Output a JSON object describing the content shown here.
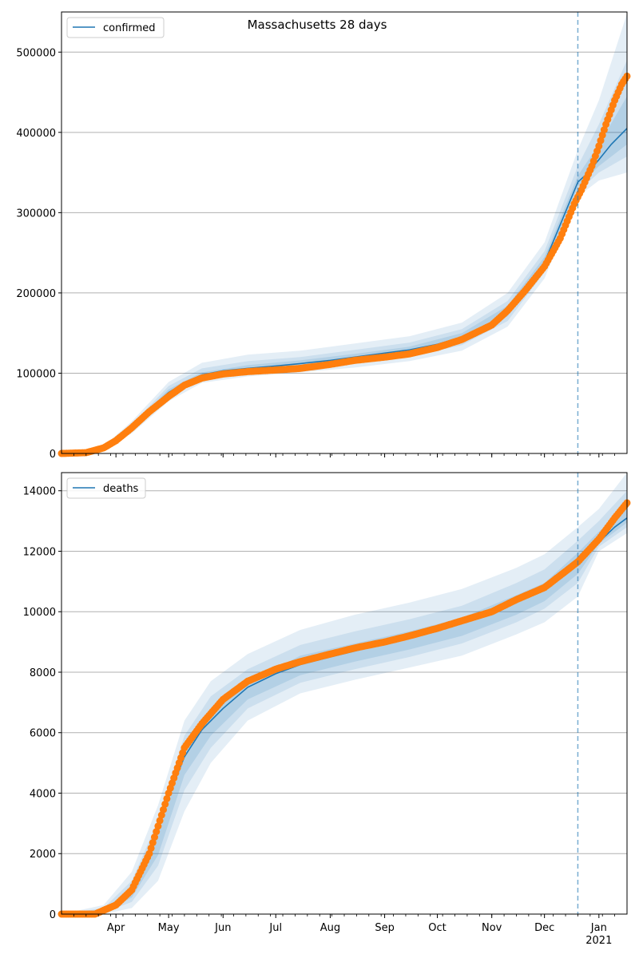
{
  "figure": {
    "title": "Massachusetts 28 days"
  },
  "colors": {
    "model": "#1f77b4",
    "observed": "#ff7f0e",
    "band": "#1f77b4",
    "grid": "#b0b0b0",
    "vline": "#1f77b4"
  },
  "chart_data": [
    {
      "type": "line",
      "title": "Massachusetts 28 days",
      "xlabel": "",
      "ylabel": "",
      "x_axis": "date",
      "xlim": [
        "2020-03-01",
        "2021-01-17"
      ],
      "ylim": [
        0,
        550000
      ],
      "yticks": [
        0,
        100000,
        200000,
        300000,
        400000,
        500000
      ],
      "ytick_labels": [
        "0",
        "100000",
        "200000",
        "300000",
        "400000",
        "500000"
      ],
      "xtick_labels": [],
      "grid": "y",
      "legend": {
        "position": "top-left",
        "entries": [
          "confirmed"
        ]
      },
      "forecast_start": "2020-12-20",
      "series": [
        {
          "name": "confirmed",
          "kind": "model-line",
          "x": [
            "2020-03-01",
            "2020-03-15",
            "2020-03-25",
            "2020-04-01",
            "2020-04-10",
            "2020-04-20",
            "2020-05-01",
            "2020-05-10",
            "2020-05-20",
            "2020-06-01",
            "2020-06-15",
            "2020-07-01",
            "2020-07-15",
            "2020-08-01",
            "2020-08-15",
            "2020-09-01",
            "2020-09-15",
            "2020-10-01",
            "2020-10-15",
            "2020-11-01",
            "2020-11-10",
            "2020-11-20",
            "2020-12-01",
            "2020-12-10",
            "2020-12-20",
            "2020-12-25",
            "2021-01-01",
            "2021-01-08",
            "2021-01-17"
          ],
          "y": [
            0,
            1000,
            7000,
            16000,
            32000,
            55000,
            76000,
            88000,
            98000,
            103000,
            106000,
            109000,
            112000,
            116000,
            120000,
            125000,
            129000,
            136000,
            145000,
            162000,
            177000,
            200000,
            238000,
            285000,
            338000,
            348000,
            366000,
            385000,
            405000
          ]
        },
        {
          "kind": "observed",
          "x": [
            "2020-03-01",
            "2020-03-15",
            "2020-03-25",
            "2020-04-01",
            "2020-04-10",
            "2020-04-20",
            "2020-05-01",
            "2020-05-10",
            "2020-05-20",
            "2020-06-01",
            "2020-06-15",
            "2020-07-01",
            "2020-07-15",
            "2020-08-01",
            "2020-08-15",
            "2020-09-01",
            "2020-09-15",
            "2020-10-01",
            "2020-10-15",
            "2020-11-01",
            "2020-11-10",
            "2020-11-20",
            "2020-12-01",
            "2020-12-10",
            "2020-12-18",
            "2020-12-22",
            "2020-12-28",
            "2021-01-01",
            "2021-01-05",
            "2021-01-10",
            "2021-01-14",
            "2021-01-17"
          ],
          "y": [
            0,
            1000,
            7000,
            16000,
            32000,
            52000,
            71000,
            85000,
            94000,
            99000,
            102000,
            104000,
            106000,
            111000,
            116000,
            120000,
            124000,
            132000,
            142000,
            160000,
            178000,
            203000,
            233000,
            268000,
            311000,
            328000,
            358000,
            383000,
            410000,
            440000,
            460000,
            470000
          ]
        },
        {
          "kind": "band-outer",
          "x": [
            "2020-03-01",
            "2020-03-25",
            "2020-04-10",
            "2020-05-01",
            "2020-05-20",
            "2020-06-15",
            "2020-07-15",
            "2020-08-15",
            "2020-09-15",
            "2020-10-15",
            "2020-11-10",
            "2020-12-01",
            "2020-12-20",
            "2021-01-01",
            "2021-01-17"
          ],
          "lower": [
            0,
            5000,
            25000,
            65000,
            88000,
            96000,
            101000,
            107000,
            115000,
            128000,
            158000,
            218000,
            320000,
            340000,
            350000
          ],
          "upper": [
            0,
            9000,
            40000,
            89000,
            113000,
            123000,
            128000,
            137000,
            146000,
            163000,
            200000,
            263000,
            378000,
            440000,
            548000
          ]
        },
        {
          "kind": "band-middle",
          "x": [
            "2020-03-01",
            "2020-03-25",
            "2020-04-10",
            "2020-05-01",
            "2020-05-20",
            "2020-06-15",
            "2020-07-15",
            "2020-08-15",
            "2020-09-15",
            "2020-10-15",
            "2020-11-10",
            "2020-12-01",
            "2020-12-20",
            "2021-01-01",
            "2021-01-17"
          ],
          "lower": [
            0,
            6000,
            28000,
            70000,
            92000,
            100000,
            105000,
            112000,
            120000,
            135000,
            165000,
            226000,
            326000,
            350000,
            370000
          ],
          "upper": [
            0,
            8000,
            36000,
            84000,
            106000,
            115000,
            120000,
            129000,
            138000,
            155000,
            190000,
            252000,
            358000,
            410000,
            490000
          ]
        },
        {
          "kind": "band-inner",
          "x": [
            "2020-03-01",
            "2020-03-25",
            "2020-04-10",
            "2020-05-01",
            "2020-05-20",
            "2020-06-15",
            "2020-07-15",
            "2020-08-15",
            "2020-09-15",
            "2020-10-15",
            "2020-11-10",
            "2020-12-01",
            "2020-12-20",
            "2021-01-01",
            "2021-01-17"
          ],
          "lower": [
            0,
            6500,
            30000,
            73000,
            95000,
            103000,
            108000,
            116000,
            125000,
            140000,
            171000,
            232000,
            332000,
            358000,
            385000
          ],
          "upper": [
            0,
            7500,
            34000,
            80000,
            101000,
            110000,
            116000,
            124000,
            133000,
            150000,
            184000,
            245000,
            346000,
            385000,
            445000
          ]
        }
      ]
    },
    {
      "type": "line",
      "title": "",
      "xlabel": "",
      "ylabel": "",
      "x_axis": "date",
      "xlim": [
        "2020-03-01",
        "2021-01-17"
      ],
      "ylim": [
        0,
        14600
      ],
      "yticks": [
        0,
        2000,
        4000,
        6000,
        8000,
        10000,
        12000,
        14000
      ],
      "ytick_labels": [
        "0",
        "2000",
        "4000",
        "6000",
        "8000",
        "10000",
        "12000",
        "14000"
      ],
      "xtick_labels": [
        {
          "date": "2020-04-01",
          "label": "Apr"
        },
        {
          "date": "2020-05-01",
          "label": "May"
        },
        {
          "date": "2020-06-01",
          "label": "Jun"
        },
        {
          "date": "2020-07-01",
          "label": "Jul"
        },
        {
          "date": "2020-08-01",
          "label": "Aug"
        },
        {
          "date": "2020-09-01",
          "label": "Sep"
        },
        {
          "date": "2020-10-01",
          "label": "Oct"
        },
        {
          "date": "2020-11-01",
          "label": "Nov"
        },
        {
          "date": "2020-12-01",
          "label": "Dec"
        },
        {
          "date": "2021-01-01",
          "label": "Jan",
          "sublabel": "2021"
        }
      ],
      "grid": "y",
      "legend": {
        "position": "top-left",
        "entries": [
          "deaths"
        ]
      },
      "forecast_start": "2020-12-20",
      "series": [
        {
          "name": "deaths",
          "kind": "model-line",
          "x": [
            "2020-03-01",
            "2020-03-20",
            "2020-04-01",
            "2020-04-10",
            "2020-04-20",
            "2020-05-01",
            "2020-05-10",
            "2020-05-20",
            "2020-06-01",
            "2020-06-15",
            "2020-07-01",
            "2020-07-15",
            "2020-08-01",
            "2020-08-15",
            "2020-09-01",
            "2020-09-15",
            "2020-10-01",
            "2020-10-15",
            "2020-11-01",
            "2020-11-15",
            "2020-12-01",
            "2020-12-10",
            "2020-12-20",
            "2021-01-01",
            "2021-01-10",
            "2021-01-17"
          ],
          "y": [
            0,
            0,
            200,
            700,
            1900,
            3900,
            5200,
            6100,
            6800,
            7500,
            7950,
            8250,
            8500,
            8700,
            8950,
            9150,
            9400,
            9650,
            9950,
            10350,
            10750,
            11150,
            11650,
            12300,
            12800,
            13100
          ]
        },
        {
          "kind": "observed",
          "x": [
            "2020-03-01",
            "2020-03-20",
            "2020-04-01",
            "2020-04-10",
            "2020-04-20",
            "2020-05-01",
            "2020-05-10",
            "2020-05-20",
            "2020-06-01",
            "2020-06-15",
            "2020-07-01",
            "2020-07-15",
            "2020-08-01",
            "2020-08-15",
            "2020-09-01",
            "2020-09-15",
            "2020-10-01",
            "2020-10-15",
            "2020-11-01",
            "2020-11-15",
            "2020-12-01",
            "2020-12-10",
            "2020-12-20",
            "2021-01-01",
            "2021-01-10",
            "2021-01-17"
          ],
          "y": [
            0,
            0,
            300,
            800,
            2000,
            4000,
            5500,
            6300,
            7100,
            7700,
            8100,
            8350,
            8600,
            8800,
            9000,
            9200,
            9450,
            9700,
            10000,
            10400,
            10800,
            11200,
            11650,
            12400,
            13100,
            13600
          ]
        },
        {
          "kind": "band-outer",
          "x": [
            "2020-03-01",
            "2020-03-25",
            "2020-04-10",
            "2020-04-25",
            "2020-05-10",
            "2020-05-25",
            "2020-06-15",
            "2020-07-15",
            "2020-08-15",
            "2020-09-15",
            "2020-10-15",
            "2020-11-15",
            "2020-12-01",
            "2020-12-20",
            "2021-01-01",
            "2021-01-17"
          ],
          "lower": [
            0,
            0,
            200,
            1100,
            3400,
            5000,
            6400,
            7300,
            7750,
            8150,
            8550,
            9250,
            9650,
            10500,
            12000,
            12600
          ],
          "upper": [
            0,
            300,
            1400,
            3600,
            6400,
            7700,
            8600,
            9400,
            9900,
            10300,
            10750,
            11450,
            11900,
            12800,
            13400,
            14600
          ]
        },
        {
          "kind": "band-middle",
          "x": [
            "2020-03-01",
            "2020-03-25",
            "2020-04-10",
            "2020-04-25",
            "2020-05-10",
            "2020-05-25",
            "2020-06-15",
            "2020-07-15",
            "2020-08-15",
            "2020-09-15",
            "2020-10-15",
            "2020-11-15",
            "2020-12-01",
            "2020-12-20",
            "2021-01-01",
            "2021-01-17"
          ],
          "lower": [
            0,
            50,
            400,
            1600,
            4100,
            5500,
            6800,
            7650,
            8100,
            8500,
            8950,
            9650,
            10100,
            10950,
            12150,
            12800
          ],
          "upper": [
            0,
            200,
            1100,
            3100,
            5900,
            7200,
            8100,
            8900,
            9350,
            9750,
            10200,
            10950,
            11400,
            12350,
            13000,
            14000
          ]
        },
        {
          "kind": "band-inner",
          "x": [
            "2020-03-01",
            "2020-03-25",
            "2020-04-10",
            "2020-04-25",
            "2020-05-10",
            "2020-05-25",
            "2020-06-15",
            "2020-07-15",
            "2020-08-15",
            "2020-09-15",
            "2020-10-15",
            "2020-11-15",
            "2020-12-01",
            "2020-12-20",
            "2021-01-01",
            "2021-01-17"
          ],
          "lower": [
            0,
            80,
            550,
            1950,
            4600,
            5900,
            7100,
            7900,
            8350,
            8750,
            9200,
            9900,
            10350,
            11250,
            12250,
            12950
          ],
          "upper": [
            0,
            150,
            850,
            2600,
            5300,
            6700,
            7650,
            8550,
            8950,
            9350,
            9800,
            10550,
            10950,
            11950,
            12650,
            13450
          ]
        }
      ]
    }
  ]
}
